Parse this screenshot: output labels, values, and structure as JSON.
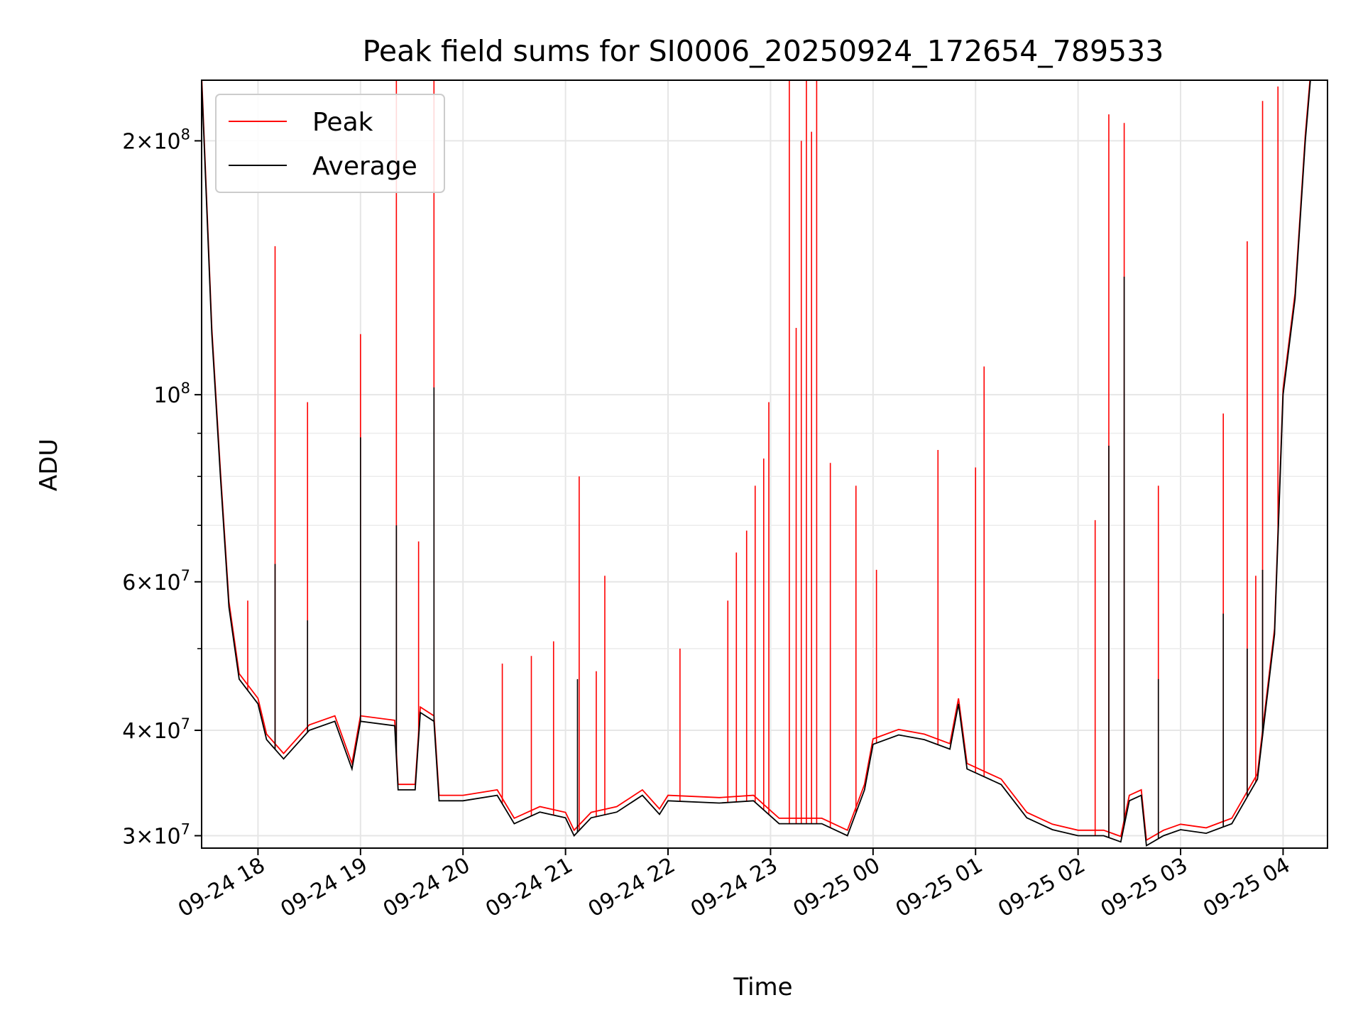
{
  "chart_data": {
    "type": "line",
    "title": "Peak field sums for SI0006_20250924_172654_789533",
    "xlabel": "Time",
    "ylabel": "ADU",
    "y_scale": "log",
    "grid": true,
    "legend_position": "top-left",
    "xlim": [
      "2025-09-24 17:27",
      "2025-09-25 04:26"
    ],
    "ylim": [
      29000000,
      236000000
    ],
    "x_ticks": [
      {
        "value": "2025-09-24 18:00",
        "label": "09-24 18"
      },
      {
        "value": "2025-09-24 19:00",
        "label": "09-24 19"
      },
      {
        "value": "2025-09-24 20:00",
        "label": "09-24 20"
      },
      {
        "value": "2025-09-24 21:00",
        "label": "09-24 21"
      },
      {
        "value": "2025-09-24 22:00",
        "label": "09-24 22"
      },
      {
        "value": "2025-09-24 23:00",
        "label": "09-24 23"
      },
      {
        "value": "2025-09-25 00:00",
        "label": "09-25 00"
      },
      {
        "value": "2025-09-25 01:00",
        "label": "09-25 01"
      },
      {
        "value": "2025-09-25 02:00",
        "label": "09-25 02"
      },
      {
        "value": "2025-09-25 03:00",
        "label": "09-25 03"
      },
      {
        "value": "2025-09-25 04:00",
        "label": "09-25 04"
      }
    ],
    "y_ticks": [
      {
        "value": 30000000,
        "mantissa": "3",
        "exponent": "7"
      },
      {
        "value": 40000000,
        "mantissa": "4",
        "exponent": "7"
      },
      {
        "value": 60000000,
        "mantissa": "6",
        "exponent": "7"
      },
      {
        "value": 100000000,
        "mantissa": "",
        "exponent": "8"
      },
      {
        "value": 200000000,
        "mantissa": "2",
        "exponent": "8"
      }
    ],
    "y_minor_ticks": [
      50000000,
      70000000,
      80000000,
      90000000
    ],
    "series": [
      {
        "name": "Average",
        "color": "#000000",
        "points": [
          [
            "2025-09-24 17:27",
            236000000
          ],
          [
            "2025-09-24 17:33",
            118000000
          ],
          [
            "2025-09-24 17:38",
            80000000
          ],
          [
            "2025-09-24 17:43",
            56000000
          ],
          [
            "2025-09-24 17:49",
            46000000
          ],
          [
            "2025-09-24 18:00",
            43000000
          ],
          [
            "2025-09-24 18:05",
            39000000
          ],
          [
            "2025-09-24 18:15",
            37000000
          ],
          [
            "2025-09-24 18:30",
            40000000
          ],
          [
            "2025-09-24 18:45",
            41000000
          ],
          [
            "2025-09-24 18:55",
            36000000
          ],
          [
            "2025-09-24 19:00",
            41000000
          ],
          [
            "2025-09-24 19:20",
            40500000
          ],
          [
            "2025-09-24 19:22",
            34000000
          ],
          [
            "2025-09-24 19:32",
            34000000
          ],
          [
            "2025-09-24 19:35",
            42000000
          ],
          [
            "2025-09-24 19:43",
            41000000
          ],
          [
            "2025-09-24 19:46",
            33000000
          ],
          [
            "2025-09-24 20:00",
            33000000
          ],
          [
            "2025-09-24 20:20",
            33500000
          ],
          [
            "2025-09-24 20:30",
            31000000
          ],
          [
            "2025-09-24 20:45",
            32000000
          ],
          [
            "2025-09-24 21:00",
            31500000
          ],
          [
            "2025-09-24 21:05",
            30000000
          ],
          [
            "2025-09-24 21:15",
            31500000
          ],
          [
            "2025-09-24 21:30",
            32000000
          ],
          [
            "2025-09-24 21:45",
            33500000
          ],
          [
            "2025-09-24 21:55",
            31800000
          ],
          [
            "2025-09-24 22:00",
            33000000
          ],
          [
            "2025-09-24 22:30",
            32800000
          ],
          [
            "2025-09-24 22:50",
            33000000
          ],
          [
            "2025-09-24 23:05",
            31000000
          ],
          [
            "2025-09-24 23:30",
            31000000
          ],
          [
            "2025-09-24 23:45",
            30000000
          ],
          [
            "2025-09-24 23:55",
            34000000
          ],
          [
            "2025-09-25 00:00",
            38500000
          ],
          [
            "2025-09-25 00:15",
            39500000
          ],
          [
            "2025-09-25 00:30",
            39000000
          ],
          [
            "2025-09-25 00:45",
            38000000
          ],
          [
            "2025-09-25 00:50",
            43000000
          ],
          [
            "2025-09-25 00:55",
            36000000
          ],
          [
            "2025-09-25 01:15",
            34500000
          ],
          [
            "2025-09-25 01:30",
            31500000
          ],
          [
            "2025-09-25 01:45",
            30500000
          ],
          [
            "2025-09-25 02:00",
            30000000
          ],
          [
            "2025-09-25 02:15",
            30000000
          ],
          [
            "2025-09-25 02:25",
            29500000
          ],
          [
            "2025-09-25 02:30",
            33000000
          ],
          [
            "2025-09-25 02:37",
            33500000
          ],
          [
            "2025-09-25 02:40",
            29200000
          ],
          [
            "2025-09-25 02:50",
            30000000
          ],
          [
            "2025-09-25 03:00",
            30500000
          ],
          [
            "2025-09-25 03:15",
            30200000
          ],
          [
            "2025-09-25 03:30",
            31000000
          ],
          [
            "2025-09-25 03:45",
            35000000
          ],
          [
            "2025-09-25 03:55",
            52000000
          ],
          [
            "2025-09-25 04:00",
            100000000
          ],
          [
            "2025-09-25 04:07",
            130000000
          ],
          [
            "2025-09-25 04:13",
            200000000
          ],
          [
            "2025-09-25 04:16",
            236000000
          ]
        ],
        "spikes": [
          [
            "2025-09-24 18:10",
            63000000
          ],
          [
            "2025-09-24 18:29",
            54000000
          ],
          [
            "2025-09-24 19:00",
            89000000
          ],
          [
            "2025-09-24 19:21",
            70000000
          ],
          [
            "2025-09-24 19:43",
            102000000
          ],
          [
            "2025-09-24 21:07",
            46000000
          ],
          [
            "2025-09-25 02:18",
            87000000
          ],
          [
            "2025-09-25 02:27",
            138000000
          ],
          [
            "2025-09-25 02:47",
            46000000
          ],
          [
            "2025-09-25 03:25",
            55000000
          ],
          [
            "2025-09-25 03:39",
            50000000
          ],
          [
            "2025-09-25 03:48",
            62000000
          ]
        ]
      },
      {
        "name": "Peak",
        "color": "#ff0000",
        "spikes": [
          [
            "2025-09-24 17:54",
            57000000
          ],
          [
            "2025-09-24 18:10",
            150000000
          ],
          [
            "2025-09-24 18:29",
            98000000
          ],
          [
            "2025-09-24 19:00",
            118000000
          ],
          [
            "2025-09-24 19:21",
            236000000
          ],
          [
            "2025-09-24 19:34",
            67000000
          ],
          [
            "2025-09-24 19:43",
            236000000
          ],
          [
            "2025-09-24 20:23",
            48000000
          ],
          [
            "2025-09-24 20:40",
            49000000
          ],
          [
            "2025-09-24 20:53",
            51000000
          ],
          [
            "2025-09-24 21:08",
            80000000
          ],
          [
            "2025-09-24 21:18",
            47000000
          ],
          [
            "2025-09-24 21:23",
            61000000
          ],
          [
            "2025-09-24 22:07",
            50000000
          ],
          [
            "2025-09-24 22:35",
            57000000
          ],
          [
            "2025-09-24 22:40",
            65000000
          ],
          [
            "2025-09-24 22:46",
            69000000
          ],
          [
            "2025-09-24 22:51",
            78000000
          ],
          [
            "2025-09-24 22:56",
            84000000
          ],
          [
            "2025-09-24 22:59",
            98000000
          ],
          [
            "2025-09-24 23:11",
            236000000
          ],
          [
            "2025-09-24 23:15",
            120000000
          ],
          [
            "2025-09-24 23:18",
            200000000
          ],
          [
            "2025-09-24 23:21",
            236000000
          ],
          [
            "2025-09-24 23:24",
            205000000
          ],
          [
            "2025-09-24 23:27",
            236000000
          ],
          [
            "2025-09-24 23:35",
            83000000
          ],
          [
            "2025-09-24 23:50",
            78000000
          ],
          [
            "2025-09-25 00:02",
            62000000
          ],
          [
            "2025-09-25 00:38",
            86000000
          ],
          [
            "2025-09-25 01:00",
            82000000
          ],
          [
            "2025-09-25 01:05",
            108000000
          ],
          [
            "2025-09-25 02:10",
            71000000
          ],
          [
            "2025-09-25 02:18",
            215000000
          ],
          [
            "2025-09-25 02:27",
            210000000
          ],
          [
            "2025-09-25 02:47",
            78000000
          ],
          [
            "2025-09-25 03:25",
            95000000
          ],
          [
            "2025-09-25 03:39",
            152000000
          ],
          [
            "2025-09-25 03:44",
            61000000
          ],
          [
            "2025-09-25 03:48",
            223000000
          ],
          [
            "2025-09-25 03:57",
            232000000
          ]
        ]
      }
    ]
  }
}
